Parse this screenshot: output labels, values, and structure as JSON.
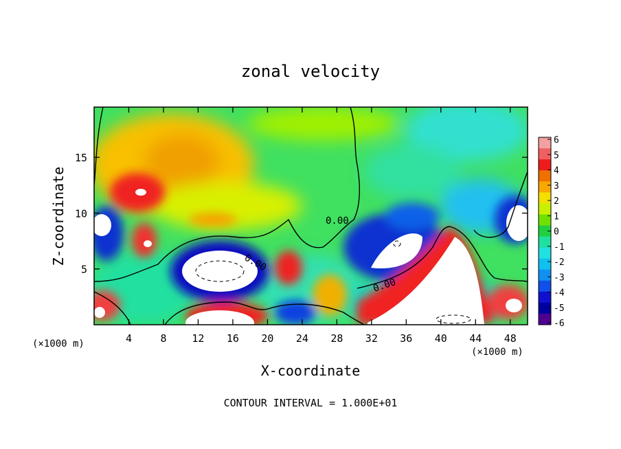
{
  "chart_data": {
    "type": "heatmap",
    "title": "zonal velocity",
    "xlabel": "X-coordinate",
    "ylabel": "Z-coordinate",
    "x_unit": "(×1000 m)",
    "xlim": [
      0,
      50
    ],
    "ylim": [
      0,
      19.5
    ],
    "x_ticks": [
      4,
      8,
      12,
      16,
      20,
      24,
      28,
      32,
      36,
      40,
      44,
      48
    ],
    "y_ticks": [
      5,
      10,
      15
    ],
    "colorbar": {
      "min": -6,
      "max": 6,
      "ticks": [
        "6",
        "5",
        "4",
        "3",
        "2",
        "1",
        "0",
        "-1",
        "-2",
        "-3",
        "-4",
        "-5",
        "-6"
      ],
      "colors": [
        "#f4a0a0",
        "#f06060",
        "#ee1c1c",
        "#f07000",
        "#f8a800",
        "#f4e000",
        "#c8f000",
        "#70e000",
        "#20d040",
        "#20e0a0",
        "#20e0e0",
        "#10c0f0",
        "#1090f0",
        "#1050e8",
        "#1010d0",
        "#0000a0",
        "#500090"
      ]
    },
    "contour_labels": [
      "0.00",
      "0.00",
      "0.00"
    ],
    "footer": "CONTOUR INTERVAL = 1.000E+01"
  }
}
